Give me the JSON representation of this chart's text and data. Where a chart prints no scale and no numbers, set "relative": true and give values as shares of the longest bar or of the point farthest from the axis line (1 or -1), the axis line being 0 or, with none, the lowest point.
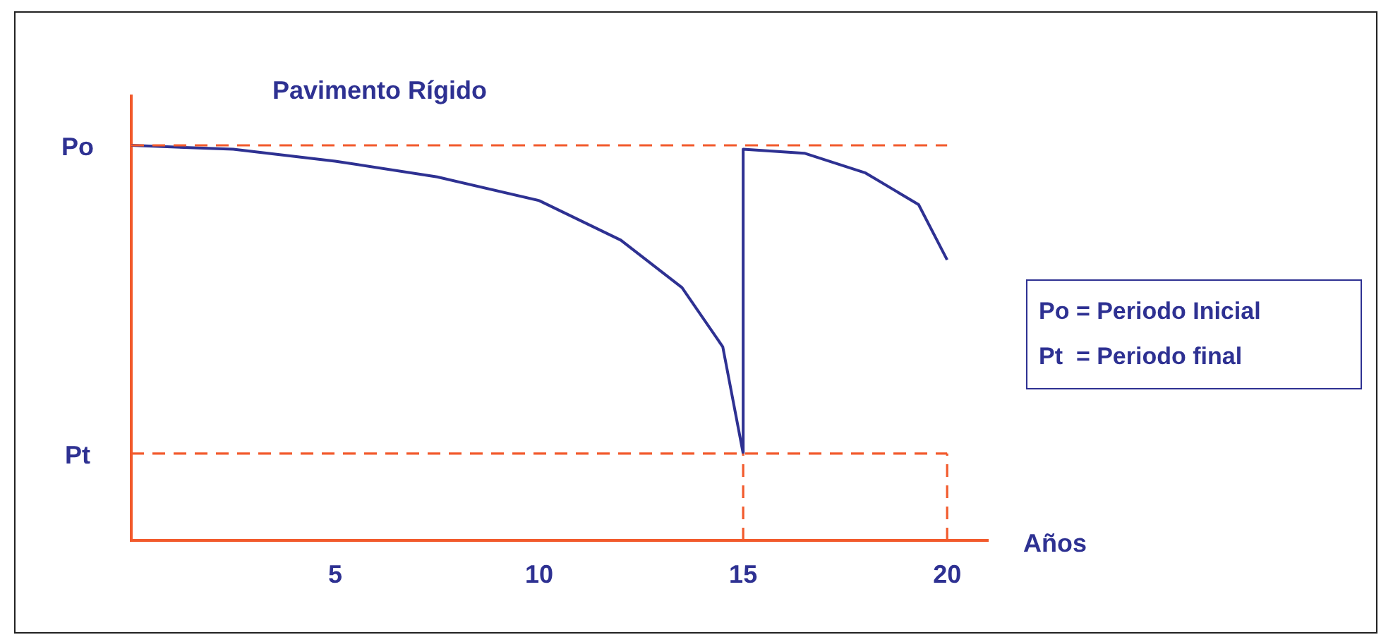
{
  "chart_data": {
    "type": "line",
    "title": "Pavimento Rígido",
    "xlabel": "Años",
    "relative": true,
    "xlim": [
      0,
      21
    ],
    "xticks": [
      5,
      10,
      15,
      20
    ],
    "series": [
      {
        "color": "#2e3192",
        "x": [
          0,
          2.5,
          5,
          7.5,
          10,
          12,
          13.5,
          14.5,
          15,
          15,
          16.5,
          18,
          19.3,
          20
        ],
        "values": [
          1.0,
          0.99,
          0.96,
          0.92,
          0.86,
          0.76,
          0.64,
          0.49,
          0.22,
          0.99,
          0.98,
          0.93,
          0.85,
          0.71
        ]
      }
    ],
    "ref_lines": [
      {
        "axis": "y",
        "value": 1.0,
        "label": "Po",
        "color": "#f25a2c",
        "line_style": "dashed"
      },
      {
        "axis": "y",
        "value": 0.22,
        "label": "Pt",
        "color": "#f25a2c",
        "line_style": "dashed"
      },
      {
        "axis": "x",
        "value": 15,
        "color": "#f25a2c",
        "line_style": "dashed"
      },
      {
        "axis": "x",
        "value": 20,
        "color": "#f25a2c",
        "line_style": "dashed"
      }
    ],
    "annotations": [
      "Po = Periodo Inicial",
      "Pt  = Periodo final"
    ],
    "grid": false,
    "legend": false,
    "marker": "none",
    "line_style": "solid"
  }
}
